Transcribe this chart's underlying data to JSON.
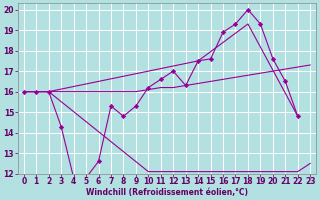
{
  "background_color": "#b3e0e0",
  "grid_color": "#ffffff",
  "line_color": "#990099",
  "marker_color": "#990099",
  "xlabel": "Windchill (Refroidissement éolien,°C)",
  "xlim": [
    -0.5,
    23.5
  ],
  "ylim": [
    12,
    20.3
  ],
  "yticks": [
    12,
    13,
    14,
    15,
    16,
    17,
    18,
    19,
    20
  ],
  "xticks": [
    0,
    1,
    2,
    3,
    4,
    5,
    6,
    7,
    8,
    9,
    10,
    11,
    12,
    13,
    14,
    15,
    16,
    17,
    18,
    19,
    20,
    21,
    22,
    23
  ],
  "line_jagged_x": [
    0,
    1,
    2,
    3,
    4,
    5,
    6,
    7,
    8,
    9,
    10,
    11,
    12,
    13,
    14,
    15,
    16,
    17,
    18,
    19,
    20,
    21,
    22
  ],
  "line_jagged_y": [
    16.0,
    16.0,
    16.0,
    14.3,
    11.8,
    11.8,
    12.6,
    15.3,
    14.8,
    15.3,
    16.2,
    16.6,
    17.0,
    16.3,
    17.5,
    17.6,
    18.9,
    19.3,
    20.0,
    19.3,
    17.6,
    16.5,
    14.8
  ],
  "line_flat_x": [
    0,
    1,
    2,
    3,
    4,
    5,
    6,
    7,
    8,
    9,
    10,
    11,
    12,
    13,
    14,
    15,
    16,
    17,
    18,
    19,
    20,
    21,
    22,
    23
  ],
  "line_flat_y": [
    16.0,
    16.0,
    16.0,
    16.0,
    16.0,
    16.0,
    16.0,
    16.0,
    16.0,
    16.0,
    16.1,
    16.2,
    16.2,
    16.3,
    16.4,
    16.5,
    16.6,
    16.7,
    16.8,
    16.9,
    17.0,
    17.1,
    17.2,
    17.3
  ],
  "line_upper_x": [
    0,
    2,
    14,
    18,
    22
  ],
  "line_upper_y": [
    16.0,
    16.0,
    17.5,
    19.3,
    14.8
  ],
  "line_lower_x": [
    0,
    2,
    10,
    22,
    23
  ],
  "line_lower_y": [
    16.0,
    16.0,
    12.1,
    12.1,
    12.5
  ],
  "font_color": "#660066",
  "font_size_tick": 5.5,
  "font_size_xlabel": 5.5
}
